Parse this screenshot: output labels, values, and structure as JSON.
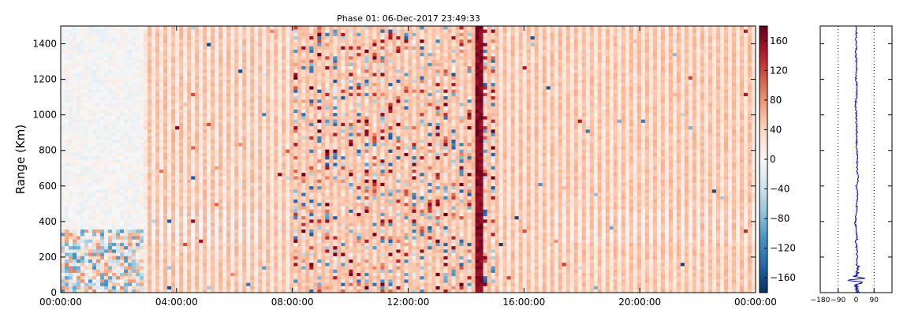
{
  "chart_data": [
    {
      "type": "heatmap",
      "title": "Phase 01: 06-Dec-2017 23:49:33",
      "xlabel": "",
      "ylabel": "Range (Km)",
      "x_ticks": [
        "00:00:00",
        "04:00:00",
        "08:00:00",
        "12:00:00",
        "16:00:00",
        "20:00:00",
        "00:00:00"
      ],
      "x_range_hours": [
        0,
        24
      ],
      "y_ticks": [
        0,
        200,
        400,
        600,
        800,
        1000,
        1200,
        1400
      ],
      "ylim": [
        0,
        1500
      ],
      "colorbar": {
        "ticks": [
          -160,
          -120,
          -80,
          -40,
          0,
          40,
          80,
          120,
          160
        ],
        "range": [
          -180,
          180
        ],
        "colormap": "RdBu_r",
        "colors": [
          "#053061",
          "#2166ac",
          "#4393c3",
          "#92c5de",
          "#d1e5f0",
          "#f7f7f7",
          "#fddbc7",
          "#f4a582",
          "#d6604d",
          "#b2182b",
          "#67001f"
        ]
      },
      "description_bands": {
        "stripe_interval_hours": 0.285,
        "noisy_interval_hours": [
          8.0,
          15.0
        ],
        "dark_stripe_hours": 14.5
      }
    },
    {
      "type": "line",
      "x_ticks": [
        "−180",
        "−90",
        "0",
        "90"
      ],
      "xlim": [
        -180,
        180
      ],
      "ylim": [
        0,
        1500
      ],
      "vlines": [
        -90,
        90
      ],
      "line_color": "#0000cc",
      "series_profile": [
        [
          0,
          2
        ],
        [
          20,
          6
        ],
        [
          40,
          -4
        ],
        [
          60,
          30
        ],
        [
          70,
          -70
        ],
        [
          80,
          50
        ],
        [
          90,
          -10
        ],
        [
          110,
          4
        ],
        [
          130,
          8
        ],
        [
          160,
          3
        ],
        [
          200,
          5
        ],
        [
          260,
          2
        ],
        [
          290,
          -3
        ],
        [
          300,
          6
        ],
        [
          340,
          0
        ],
        [
          400,
          -5
        ],
        [
          440,
          2
        ],
        [
          500,
          4
        ],
        [
          560,
          8
        ],
        [
          600,
          2
        ],
        [
          640,
          10
        ],
        [
          700,
          4
        ],
        [
          760,
          6
        ],
        [
          800,
          3
        ],
        [
          860,
          2
        ],
        [
          900,
          4
        ],
        [
          960,
          0
        ],
        [
          1000,
          2
        ],
        [
          1060,
          -3
        ],
        [
          1100,
          2
        ],
        [
          1160,
          5
        ],
        [
          1200,
          -2
        ],
        [
          1260,
          3
        ],
        [
          1300,
          1
        ],
        [
          1360,
          -1
        ],
        [
          1400,
          2
        ],
        [
          1440,
          0
        ],
        [
          1480,
          3
        ],
        [
          1500,
          2
        ]
      ]
    }
  ]
}
